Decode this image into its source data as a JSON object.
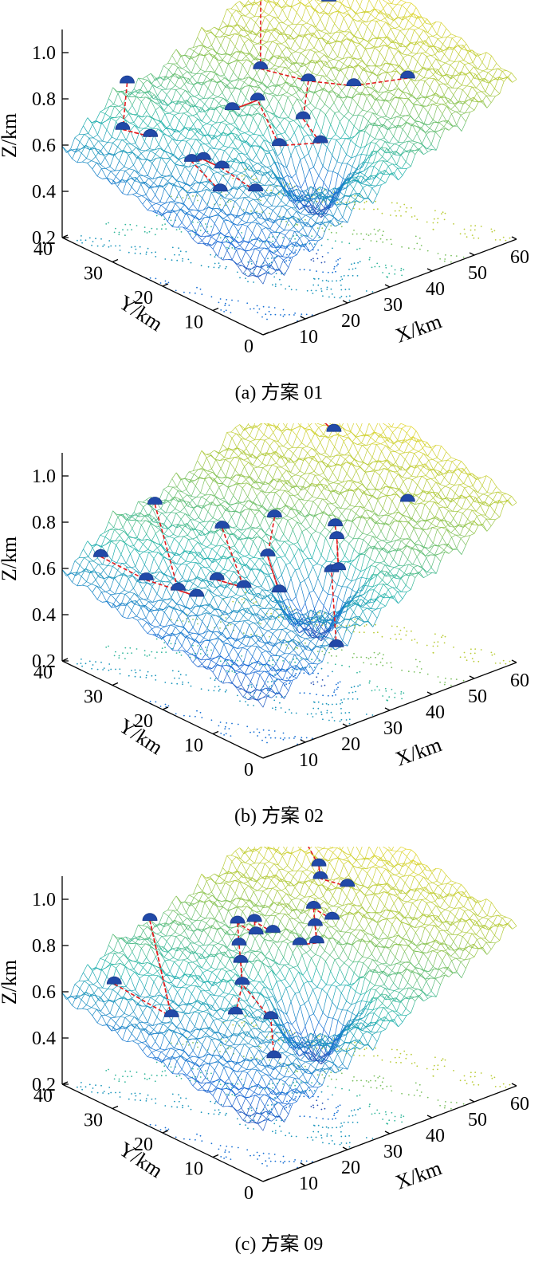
{
  "figure": {
    "colors": {
      "low": "#3b2a98",
      "mid": "#21b6a6",
      "high": "#f9c932",
      "path": "#e31a1c",
      "node": "#2149a8"
    }
  },
  "chart_data": [
    {
      "type": "surface3d",
      "caption": "(a)  方案 01",
      "zlabel": "Z/km",
      "ylabel": "Y/km",
      "xlabel": "X/km",
      "zticks": [
        "0.2",
        "0.4",
        "0.6",
        "0.8",
        "1.0"
      ],
      "yticks": [
        "40",
        "30",
        "20",
        "10",
        "0"
      ],
      "xticks": [
        "10",
        "20",
        "30",
        "40",
        "50",
        "60"
      ],
      "xlim": [
        0,
        60
      ],
      "ylim": [
        0,
        40
      ],
      "zlim": [
        0.2,
        1.1
      ],
      "nodes": [
        [
          6,
          33,
          0.7
        ],
        [
          9,
          30,
          0.68
        ],
        [
          13,
          38,
          0.8
        ],
        [
          14,
          26,
          0.58
        ],
        [
          18,
          27,
          0.55
        ],
        [
          20,
          25,
          0.52
        ],
        [
          26,
          28,
          0.7
        ],
        [
          30,
          22,
          0.58
        ],
        [
          32,
          28,
          0.7
        ],
        [
          38,
          24,
          0.62
        ],
        [
          41,
          35,
          0.7
        ],
        [
          44,
          28,
          0.7
        ],
        [
          50,
          24,
          0.68
        ],
        [
          47,
          40,
          0.98
        ],
        [
          54,
          36,
          0.96
        ],
        [
          56,
          34,
          0.9
        ],
        [
          58,
          20,
          0.7
        ],
        [
          22,
          20,
          0.46
        ],
        [
          16,
          22,
          0.48
        ],
        [
          35,
          18,
          0.6
        ]
      ]
    },
    {
      "type": "surface3d",
      "caption": "(b)  方案 02",
      "zlabel": "Z/km",
      "ylabel": "Y/km",
      "xlabel": "X/km",
      "zticks": [
        "0.2",
        "0.4",
        "0.6",
        "0.8",
        "1.0"
      ],
      "yticks": [
        "40",
        "30",
        "20",
        "10",
        "0"
      ],
      "xticks": [
        "10",
        "20",
        "30",
        "40",
        "50",
        "60"
      ],
      "xlim": [
        0,
        60
      ],
      "ylim": [
        0,
        40
      ],
      "zlim": [
        0.2,
        1.1
      ],
      "nodes": [
        [
          2,
          34,
          0.7
        ],
        [
          8,
          30,
          0.6
        ],
        [
          12,
          27,
          0.56
        ],
        [
          14,
          25,
          0.54
        ],
        [
          16,
          35,
          0.82
        ],
        [
          20,
          26,
          0.56
        ],
        [
          24,
          24,
          0.52
        ],
        [
          26,
          30,
          0.7
        ],
        [
          30,
          22,
          0.48
        ],
        [
          32,
          26,
          0.58
        ],
        [
          36,
          28,
          0.7
        ],
        [
          40,
          20,
          0.52
        ],
        [
          44,
          22,
          0.48
        ],
        [
          46,
          24,
          0.58
        ],
        [
          48,
          26,
          0.6
        ],
        [
          47,
          40,
          1.0
        ],
        [
          54,
          36,
          0.96
        ],
        [
          56,
          33,
          0.88
        ],
        [
          58,
          20,
          0.7
        ],
        [
          34,
          14,
          0.3
        ]
      ]
    },
    {
      "type": "surface3d",
      "caption": "(c)  方案 09",
      "zlabel": "Z/km",
      "ylabel": "Y/km",
      "xlabel": "X/km",
      "zticks": [
        "0.2",
        "0.4",
        "0.6",
        "0.8",
        "1.0"
      ],
      "yticks": [
        "40",
        "30",
        "20",
        "10",
        "0"
      ],
      "xticks": [
        "10",
        "20",
        "30",
        "40",
        "50",
        "60"
      ],
      "xlim": [
        0,
        60
      ],
      "ylim": [
        0,
        40
      ],
      "zlim": [
        0.2,
        1.1
      ],
      "nodes": [
        [
          4,
          33,
          0.68
        ],
        [
          14,
          30,
          0.5
        ],
        [
          16,
          36,
          0.84
        ],
        [
          22,
          24,
          0.52
        ],
        [
          26,
          26,
          0.6
        ],
        [
          28,
          28,
          0.66
        ],
        [
          30,
          30,
          0.7
        ],
        [
          32,
          32,
          0.76
        ],
        [
          34,
          30,
          0.72
        ],
        [
          36,
          32,
          0.74
        ],
        [
          38,
          30,
          0.7
        ],
        [
          42,
          28,
          0.64
        ],
        [
          46,
          28,
          0.62
        ],
        [
          48,
          30,
          0.66
        ],
        [
          50,
          32,
          0.7
        ],
        [
          52,
          30,
          0.66
        ],
        [
          54,
          34,
          0.78
        ],
        [
          56,
          36,
          0.8
        ],
        [
          58,
          32,
          0.74
        ],
        [
          56,
          40,
          0.92
        ],
        [
          24,
          18,
          0.38
        ],
        [
          28,
          22,
          0.48
        ]
      ]
    }
  ]
}
